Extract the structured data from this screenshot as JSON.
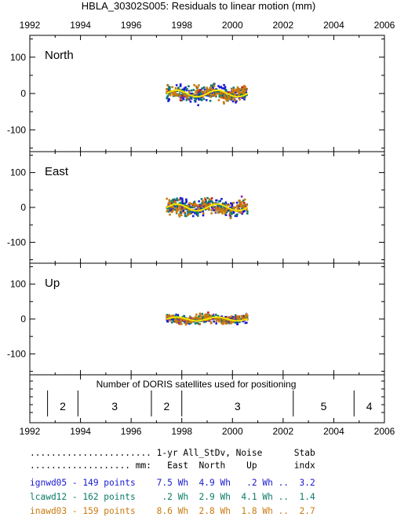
{
  "title": "HBLA_30302S005: Residuals to linear motion (mm)",
  "colors": {
    "axis": "#000000",
    "ign": "#1a1ad0",
    "lca": "#0a7a6a",
    "ina": "#c97a10",
    "mean": "#f5e600",
    "accent_red": "#d01a1a",
    "accent_purple": "#8a2a9a"
  },
  "x_ticks": [
    "1992",
    "1994",
    "1996",
    "1998",
    "2000",
    "2002",
    "2004",
    "2006"
  ],
  "chart_data": [
    {
      "type": "scatter",
      "title": "North",
      "xlim": [
        1992,
        2006
      ],
      "ylim": [
        -160,
        160
      ],
      "y_ticks": [
        "100",
        "0",
        "-100"
      ],
      "x_range_of_data": [
        1997.4,
        2000.6
      ],
      "approx_spread_mm": 30,
      "series": [
        {
          "name": "ignwd05",
          "points": 149
        },
        {
          "name": "lcawd12",
          "points": 162
        },
        {
          "name": "inawd03",
          "points": 159
        }
      ]
    },
    {
      "type": "scatter",
      "title": "East",
      "xlim": [
        1992,
        2006
      ],
      "ylim": [
        -160,
        160
      ],
      "y_ticks": [
        "100",
        "0",
        "-100"
      ],
      "x_range_of_data": [
        1997.4,
        2000.6
      ],
      "approx_spread_mm": 32,
      "series": [
        {
          "name": "ignwd05",
          "points": 149
        },
        {
          "name": "lcawd12",
          "points": 162
        },
        {
          "name": "inawd03",
          "points": 159
        }
      ]
    },
    {
      "type": "scatter",
      "title": "Up",
      "xlim": [
        1992,
        2006
      ],
      "ylim": [
        -160,
        160
      ],
      "y_ticks": [
        "100",
        "0",
        "-100"
      ],
      "x_range_of_data": [
        1997.4,
        2000.6
      ],
      "approx_spread_mm": 18,
      "series": [
        {
          "name": "ignwd05",
          "points": 149
        },
        {
          "name": "lcawd12",
          "points": 162
        },
        {
          "name": "inawd03",
          "points": 159
        }
      ]
    },
    {
      "type": "table",
      "title": "Number of DORIS satellites used for positioning",
      "xlim": [
        1992,
        2006
      ],
      "segments": [
        {
          "from": 1992.7,
          "to": 1993.9,
          "value": "2"
        },
        {
          "from": 1993.9,
          "to": 1996.8,
          "value": "3"
        },
        {
          "from": 1996.8,
          "to": 1998.0,
          "value": "2"
        },
        {
          "from": 1998.0,
          "to": 2002.4,
          "value": "3"
        },
        {
          "from": 2002.4,
          "to": 2004.8,
          "value": "5"
        },
        {
          "from": 2004.8,
          "to": 2006.0,
          "value": "4"
        }
      ]
    }
  ],
  "stats": {
    "header1": "....................... 1-yr All_StDv, Noise      Stab",
    "header2": "................... mm:   East  North    Up       indx",
    "rows": [
      {
        "text": "ignwd05 - 149 points    7.5 Wh  4.9 Wh   .2 Wh ..  3.2",
        "color": "#1a1ad0"
      },
      {
        "text": "lcawd12 - 162 points     .2 Wh  2.9 Wh  4.1 Wh ..  1.4",
        "color": "#0a7a6a"
      },
      {
        "text": "inawd03 - 159 points    8.6 Wh  2.8 Wh  1.8 Wh ..  2.7",
        "color": "#c97a10"
      }
    ]
  }
}
